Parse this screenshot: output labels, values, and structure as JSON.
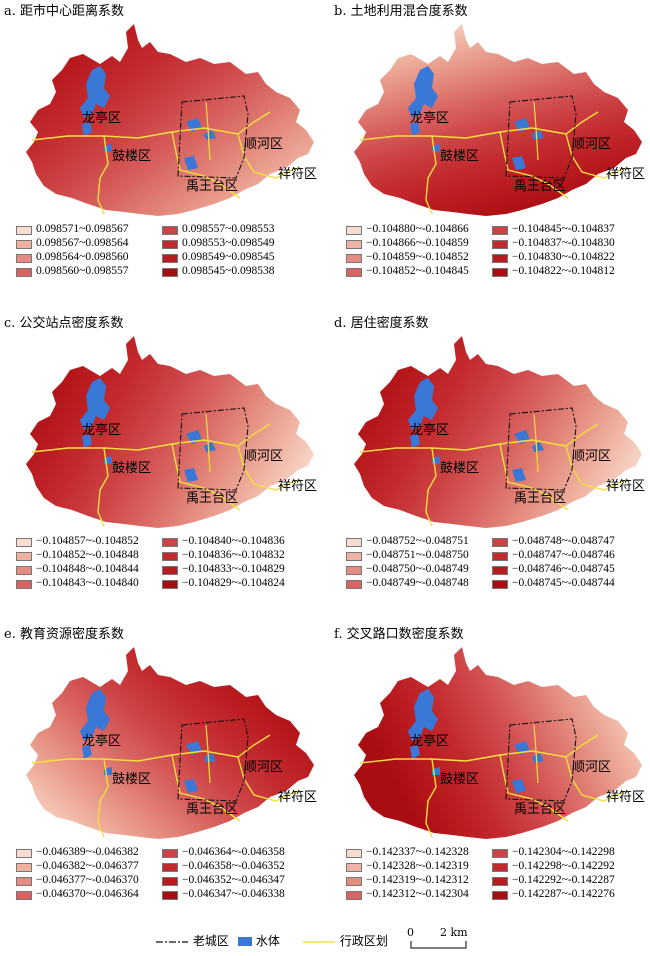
{
  "panels": [
    {
      "title": "a. 距市中心距离系数",
      "legend": [
        {
          "label": "0.098571~0.098567",
          "color": "#f8dccf"
        },
        {
          "label": "0.098567~0.098564",
          "color": "#f0b3a2"
        },
        {
          "label": "0.098564~0.098560",
          "color": "#e48c7e"
        },
        {
          "label": "0.098560~0.098557",
          "color": "#d86360"
        },
        {
          "label": "0.098557~0.098553",
          "color": "#cd4345"
        },
        {
          "label": "0.098553~0.098549",
          "color": "#c32a2e"
        },
        {
          "label": "0.098549~0.098545",
          "color": "#b81a1e"
        },
        {
          "label": "0.098545~0.098538",
          "color": "#a80d12"
        }
      ]
    },
    {
      "title": "b. 土地利用混合度系数",
      "legend": [
        {
          "label": "−0.104880~-0.104866",
          "color": "#f8dccf"
        },
        {
          "label": "−0.104866~-0.104859",
          "color": "#f0b3a2"
        },
        {
          "label": "−0.104859~-0.104852",
          "color": "#e48c7e"
        },
        {
          "label": "−0.104852~-0.104845",
          "color": "#d86360"
        },
        {
          "label": "−0.104845~-0.104837",
          "color": "#cd4345"
        },
        {
          "label": "−0.104837~-0.104830",
          "color": "#c32a2e"
        },
        {
          "label": "−0.104830~-0.104822",
          "color": "#b81a1e"
        },
        {
          "label": "−0.104822~-0.104812",
          "color": "#a80d12"
        }
      ]
    },
    {
      "title": "c. 公交站点密度系数",
      "legend": [
        {
          "label": "−0.104857~-0.104852",
          "color": "#f8dccf"
        },
        {
          "label": "−0.104852~-0.104848",
          "color": "#f0b3a2"
        },
        {
          "label": "−0.104848~-0.104844",
          "color": "#e48c7e"
        },
        {
          "label": "−0.104843~-0.104840",
          "color": "#d86360"
        },
        {
          "label": "−0.104840~-0.104836",
          "color": "#cd4345"
        },
        {
          "label": "−0.104836~-0.104832",
          "color": "#c32a2e"
        },
        {
          "label": "−0.104833~-0.104829",
          "color": "#b81a1e"
        },
        {
          "label": "−0.104829~-0.104824",
          "color": "#a80d12"
        }
      ]
    },
    {
      "title": "d. 居住密度系数",
      "legend": [
        {
          "label": "−0.048752~-0.048751",
          "color": "#f8dccf"
        },
        {
          "label": "−0.048751~-0.048750",
          "color": "#f0b3a2"
        },
        {
          "label": "−0.048750~-0.048749",
          "color": "#e48c7e"
        },
        {
          "label": "−0.048749~-0.048748",
          "color": "#d86360"
        },
        {
          "label": "−0.048748~-0.048747",
          "color": "#cd4345"
        },
        {
          "label": "−0.048747~-0.048746",
          "color": "#c32a2e"
        },
        {
          "label": "−0.048746~-0.048745",
          "color": "#b81a1e"
        },
        {
          "label": "−0.048745~-0.048744",
          "color": "#a80d12"
        }
      ]
    },
    {
      "title": "e. 教育资源密度系数",
      "legend": [
        {
          "label": "−0.046389~-0.046382",
          "color": "#f8dccf"
        },
        {
          "label": "−0.046382~-0.046377",
          "color": "#f0b3a2"
        },
        {
          "label": "−0.046377~-0.046370",
          "color": "#e48c7e"
        },
        {
          "label": "−0.046370~-0.046364",
          "color": "#d86360"
        },
        {
          "label": "−0.046364~-0.046358",
          "color": "#cd4345"
        },
        {
          "label": "−0.046358~-0.046352",
          "color": "#c32a2e"
        },
        {
          "label": "−0.046352~-0.046347",
          "color": "#b81a1e"
        },
        {
          "label": "−0.046347~-0.046338",
          "color": "#a80d12"
        }
      ]
    },
    {
      "title": "f. 交叉路口数密度系数",
      "legend": [
        {
          "label": "−0.142337~-0.142328",
          "color": "#f8dccf"
        },
        {
          "label": "−0.142328~-0.142319",
          "color": "#f0b3a2"
        },
        {
          "label": "−0.142319~-0.142312",
          "color": "#e48c7e"
        },
        {
          "label": "−0.142312~-0.142304",
          "color": "#d86360"
        },
        {
          "label": "−0.142304~-0.142298",
          "color": "#cd4345"
        },
        {
          "label": "−0.142298~-0.142292",
          "color": "#c32a2e"
        },
        {
          "label": "−0.142292~-0.142287",
          "color": "#b81a1e"
        },
        {
          "label": "−0.142287~-0.142276",
          "color": "#a80d12"
        }
      ]
    }
  ],
  "district_labels": [
    "龙亭区",
    "鼓楼区",
    "顺河区",
    "禹王台区",
    "祥符区"
  ],
  "footer": {
    "old_city": "老城区",
    "water": "水体",
    "admin": "行政区划",
    "scale_zero": "0",
    "scale_dist": "2 km"
  },
  "colors": {
    "old_city_line": "#111111",
    "water": "#3a78d8",
    "admin_line": "#f2e03c"
  }
}
